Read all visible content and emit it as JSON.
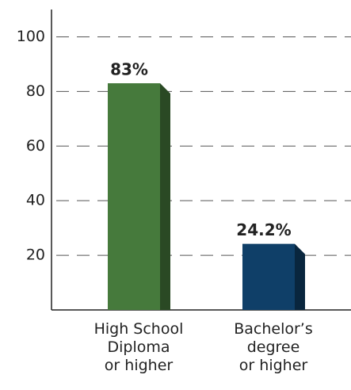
{
  "chart_data": {
    "type": "bar",
    "categories": [
      "High School\nDiploma\nor higher",
      "Bachelor’s\ndegree\nor higher"
    ],
    "values": [
      83,
      24.2
    ],
    "value_labels": [
      "83%",
      "24.2%"
    ],
    "colors": [
      "#467a3c",
      "#0f3f68"
    ],
    "ylim": [
      0,
      110
    ],
    "yticks": [
      20,
      40,
      60,
      80,
      100
    ],
    "grid": true
  }
}
